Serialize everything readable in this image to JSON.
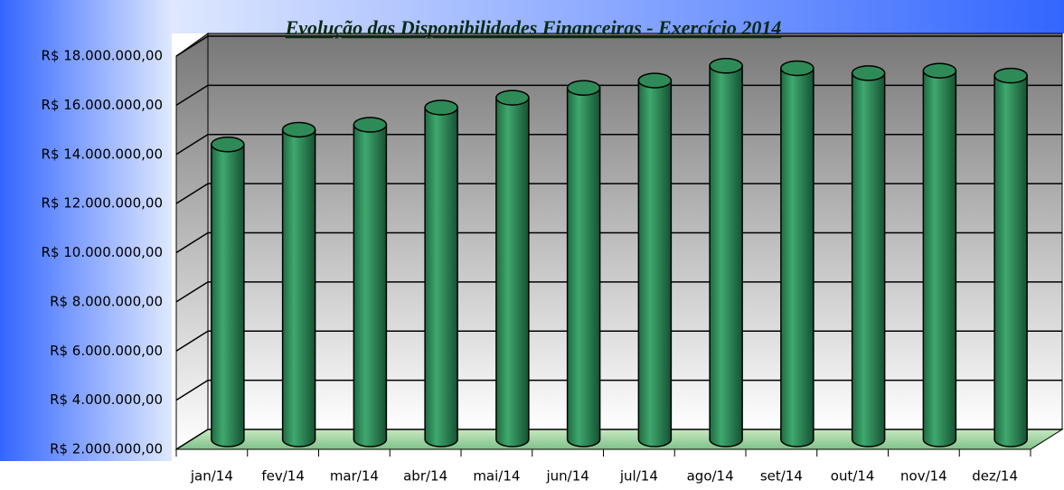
{
  "chart_data": {
    "type": "bar3d",
    "title": "Evolução das Disponibilidades Financeiras - Exercício 2014",
    "categories": [
      "jan/14",
      "fev/14",
      "mar/14",
      "abr/14",
      "mai/14",
      "jun/14",
      "jul/14",
      "ago/14",
      "set/14",
      "out/14",
      "nov/14",
      "dez/14"
    ],
    "values": [
      14000000,
      14600000,
      14800000,
      15500000,
      15900000,
      16300000,
      16600000,
      17200000,
      17100000,
      16900000,
      17000000,
      16800000
    ],
    "color": "#2e8b57",
    "ylim": [
      2000000,
      18000000
    ],
    "yticks": [
      {
        "value": 2000000,
        "label": "R$ 2.000.000,00"
      },
      {
        "value": 4000000,
        "label": "R$ 4.000.000,00"
      },
      {
        "value": 6000000,
        "label": "R$ 6.000.000,00"
      },
      {
        "value": 8000000,
        "label": "R$ 8.000.000,00"
      },
      {
        "value": 10000000,
        "label": "R$ 10.000.000,00"
      },
      {
        "value": 12000000,
        "label": "R$ 12.000.000,00"
      },
      {
        "value": 14000000,
        "label": "R$ 14.000.000,00"
      },
      {
        "value": 16000000,
        "label": "R$ 16.000.000,00"
      },
      {
        "value": 18000000,
        "label": "R$ 18.000.000,00"
      }
    ],
    "grid": true
  }
}
